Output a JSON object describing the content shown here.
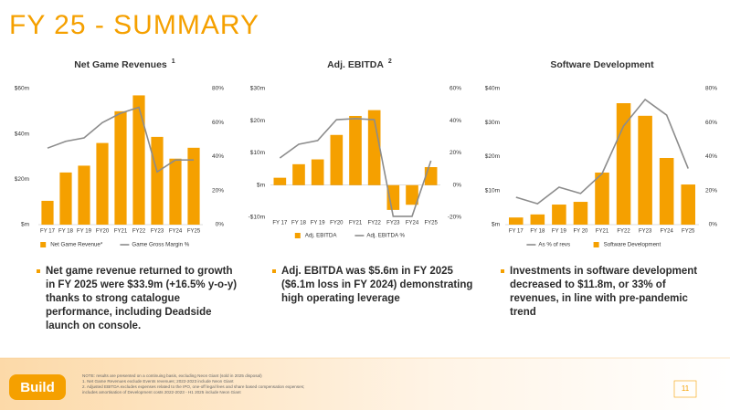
{
  "title": "FY 25 - SUMMARY",
  "chart_data": [
    {
      "type": "combo",
      "title": "Net Game Revenues",
      "title_note": "1",
      "categories": [
        "FY 17",
        "FY 18",
        "FY 19",
        "FY20",
        "FY21",
        "FY22",
        "FY23",
        "FY24",
        "FY25"
      ],
      "ylim": [
        0,
        60
      ],
      "yticks": [
        {
          "value": 0,
          "label": "$m"
        },
        {
          "value": 20,
          "label": "$20m"
        },
        {
          "value": 40,
          "label": "$40m"
        },
        {
          "value": 60,
          "label": "$60m"
        }
      ],
      "y2lim": [
        0,
        80
      ],
      "y2ticks": [
        {
          "value": 0,
          "label": "0%"
        },
        {
          "value": 20,
          "label": "20%"
        },
        {
          "value": 40,
          "label": "40%"
        },
        {
          "value": 60,
          "label": "60%"
        },
        {
          "value": 80,
          "label": "80%"
        }
      ],
      "series": [
        {
          "name": "Net Game Revenue*",
          "type": "bar",
          "color": "#f5a000",
          "values": [
            10.5,
            23,
            26,
            36,
            50,
            57,
            38.7,
            29.1,
            33.9
          ]
        },
        {
          "name": "Game Gross Margin %",
          "type": "line",
          "axis": "y2",
          "color": "#8c8c8c",
          "values": [
            45,
            49,
            51,
            60,
            65.5,
            69,
            31,
            38,
            38
          ]
        }
      ]
    },
    {
      "type": "combo",
      "title": "Adj. EBITDA",
      "title_note": "2",
      "categories": [
        "FY 17",
        "FY 18",
        "FY 19",
        "FY20",
        "FY21",
        "FY22",
        "FY23",
        "FY24",
        "FY25"
      ],
      "ylim": [
        -10,
        30
      ],
      "yticks": [
        {
          "value": -10,
          "label": "-$10m"
        },
        {
          "value": 0,
          "label": "$m"
        },
        {
          "value": 10,
          "label": "$10m"
        },
        {
          "value": 20,
          "label": "$20m"
        },
        {
          "value": 30,
          "label": "$30m"
        }
      ],
      "y2lim": [
        -20,
        60
      ],
      "y2ticks": [
        {
          "value": -20,
          "label": "-20%"
        },
        {
          "value": 0,
          "label": "0%"
        },
        {
          "value": 20,
          "label": "20%"
        },
        {
          "value": 40,
          "label": "40%"
        },
        {
          "value": 60,
          "label": "60%"
        }
      ],
      "series": [
        {
          "name": "Adj. EBITDA",
          "type": "bar",
          "color": "#f5a000",
          "values": [
            2.3,
            6.5,
            8,
            15.6,
            21.5,
            23.3,
            -7.7,
            -6.1,
            5.6
          ]
        },
        {
          "name": "Adj. EBITDA %",
          "type": "line",
          "axis": "y2",
          "color": "#8c8c8c",
          "values": [
            16.9,
            25.4,
            27.7,
            40.7,
            41.3,
            40.7,
            -19.4,
            -19.4,
            15.2
          ]
        }
      ]
    },
    {
      "type": "combo",
      "title": "Software Development",
      "categories": [
        "FY 17",
        "FY 18",
        "FY 19",
        "FY 20",
        "FY21",
        "FY22",
        "FY23",
        "FY24",
        "FY25"
      ],
      "ylim": [
        0,
        40
      ],
      "yticks": [
        {
          "value": 0,
          "label": "$m"
        },
        {
          "value": 10,
          "label": "$10m"
        },
        {
          "value": 20,
          "label": "$20m"
        },
        {
          "value": 30,
          "label": "$30m"
        },
        {
          "value": 40,
          "label": "$40m"
        }
      ],
      "y2lim": [
        0,
        80
      ],
      "y2ticks": [
        {
          "value": 0,
          "label": "0%"
        },
        {
          "value": 20,
          "label": "20%"
        },
        {
          "value": 40,
          "label": "40%"
        },
        {
          "value": 60,
          "label": "60%"
        },
        {
          "value": 80,
          "label": "80%"
        }
      ],
      "series": [
        {
          "name": "As % of revs",
          "type": "line",
          "axis": "y2",
          "color": "#8c8c8c",
          "values": [
            16.1,
            12.3,
            22,
            18.3,
            30,
            58,
            73.6,
            64.4,
            33
          ]
        },
        {
          "name": "Software Development",
          "type": "bar",
          "color": "#f5a000",
          "values": [
            2.1,
            3,
            5.9,
            6.7,
            15.3,
            35.7,
            32,
            19.6,
            11.8
          ]
        }
      ]
    }
  ],
  "bullets": [
    "Net game revenue returned to growth in FY 2025 were $33.9m (+16.5% y-o-y) thanks to strong catalogue performance, including Deadside launch on console.",
    "Adj. EBITDA was $5.6m in FY 2025 ($6.1m loss in FY 2024) demonstrating high operating leverage",
    "Investments in software development decreased to $11.8m, or 33% of revenues, in line with pre-pandemic trend"
  ],
  "notes": [
    "NOTE: results are presented on a continuing basis, excluding Neon Giant (sold in 2025 disposal)",
    "1. Net Game Revenues exclude Events revenues; 2022-2023 include Neon Giant",
    "2. Adjusted EBITDA excludes expenses related to the IPO, one-off legal fees and share based compensation expenses;",
    "includes amortisation of Development costs 2022-2023 - H1 2025 include Neon Giant"
  ],
  "logo": "Build",
  "page_number": "11"
}
